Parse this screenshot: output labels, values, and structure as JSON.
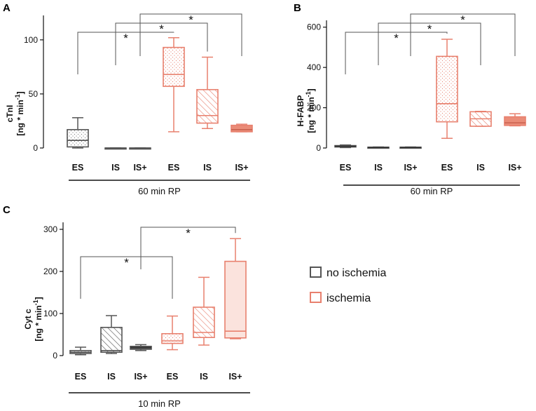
{
  "colors": {
    "no_ischemia": "#555555",
    "ischemia": "#e8806e",
    "ischemia_fill": "#fbe3dd",
    "ischemia_solid": "#ea8c78"
  },
  "legend": {
    "items": [
      {
        "label": "no ischemia",
        "color": "#555555"
      },
      {
        "label": "ischemia",
        "color": "#e8806e"
      }
    ]
  },
  "chart_data": [
    {
      "type": "box",
      "panel": "A",
      "ylabel_line1": "cTnI",
      "ylabel_line2": "[ng * min",
      "ylabel_sup": "-1",
      "ylabel_close": "]",
      "ylim": [
        0,
        120
      ],
      "yticks": [
        0,
        50,
        100
      ],
      "group_label": "60 min RP",
      "boxes": [
        {
          "category": "ES",
          "group": "no ischemia",
          "pattern": "dots",
          "min": 0,
          "q1": 1,
          "median": 7,
          "q3": 17,
          "max": 28
        },
        {
          "category": "IS",
          "group": "no ischemia",
          "pattern": "none",
          "min": 0,
          "q1": 0,
          "median": 0,
          "q3": 0,
          "max": 0
        },
        {
          "category": "IS+",
          "group": "no ischemia",
          "pattern": "none",
          "min": 0,
          "q1": 0,
          "median": 0,
          "q3": 0,
          "max": 0
        },
        {
          "category": "ES",
          "group": "ischemia",
          "pattern": "dots",
          "min": 15,
          "q1": 57,
          "median": 68,
          "q3": 93,
          "max": 102
        },
        {
          "category": "IS",
          "group": "ischemia",
          "pattern": "hatch",
          "min": 18,
          "q1": 23,
          "median": 30,
          "q3": 54,
          "max": 84
        },
        {
          "category": "IS+",
          "group": "ischemia",
          "pattern": "solid",
          "min": 15,
          "q1": 15,
          "median": 17,
          "q3": 21,
          "max": 22
        }
      ],
      "significance": [
        {
          "from": 0,
          "to": 3,
          "label": "*"
        },
        {
          "from": 1,
          "to": 4,
          "label": "*"
        },
        {
          "from": 2,
          "to": 5,
          "label": "*"
        }
      ]
    },
    {
      "type": "box",
      "panel": "B",
      "ylabel_line1": "H-FABP",
      "ylabel_line2": "[ng * min",
      "ylabel_sup": "-1",
      "ylabel_close": "]",
      "ylim": [
        0,
        620
      ],
      "yticks": [
        0,
        200,
        400,
        600
      ],
      "group_label": "60 min RP",
      "boxes": [
        {
          "category": "ES",
          "group": "no ischemia",
          "pattern": "solid",
          "min": 2,
          "q1": 5,
          "median": 8,
          "q3": 12,
          "max": 15
        },
        {
          "category": "IS",
          "group": "no ischemia",
          "pattern": "solid",
          "min": 1,
          "q1": 2,
          "median": 3,
          "q3": 4,
          "max": 5
        },
        {
          "category": "IS+",
          "group": "no ischemia",
          "pattern": "solid",
          "min": 1,
          "q1": 2,
          "median": 3,
          "q3": 4,
          "max": 5
        },
        {
          "category": "ES",
          "group": "ischemia",
          "pattern": "dots",
          "min": 48,
          "q1": 130,
          "median": 220,
          "q3": 455,
          "max": 540
        },
        {
          "category": "IS",
          "group": "ischemia",
          "pattern": "hatch",
          "min": 108,
          "q1": 108,
          "median": 145,
          "q3": 180,
          "max": 182
        },
        {
          "category": "IS+",
          "group": "ischemia",
          "pattern": "solid",
          "min": 110,
          "q1": 112,
          "median": 125,
          "q3": 155,
          "max": 170
        }
      ],
      "significance": [
        {
          "from": 0,
          "to": 3,
          "label": "*"
        },
        {
          "from": 1,
          "to": 4,
          "label": "*"
        },
        {
          "from": 2,
          "to": 5,
          "label": "*"
        }
      ]
    },
    {
      "type": "box",
      "panel": "C",
      "ylabel_line1": "Cyt c",
      "ylabel_line2": "[ng * min",
      "ylabel_sup": "-1",
      "ylabel_close": "]",
      "ylim": [
        0,
        310
      ],
      "yticks": [
        0,
        100,
        200,
        300
      ],
      "group_label": "10 min RP",
      "boxes": [
        {
          "category": "ES",
          "group": "no ischemia",
          "pattern": "dots",
          "min": 2,
          "q1": 5,
          "median": 8,
          "q3": 12,
          "max": 20
        },
        {
          "category": "IS",
          "group": "no ischemia",
          "pattern": "hatch",
          "min": 5,
          "q1": 8,
          "median": 12,
          "q3": 67,
          "max": 95
        },
        {
          "category": "IS+",
          "group": "no ischemia",
          "pattern": "solid",
          "min": 12,
          "q1": 15,
          "median": 19,
          "q3": 22,
          "max": 26
        },
        {
          "category": "ES",
          "group": "ischemia",
          "pattern": "dots",
          "min": 14,
          "q1": 29,
          "median": 35,
          "q3": 52,
          "max": 94
        },
        {
          "category": "IS",
          "group": "ischemia",
          "pattern": "hatch",
          "min": 25,
          "q1": 43,
          "median": 55,
          "q3": 115,
          "max": 186
        },
        {
          "category": "IS+",
          "group": "ischemia",
          "pattern": "fill",
          "min": 40,
          "q1": 42,
          "median": 58,
          "q3": 224,
          "max": 278
        }
      ],
      "significance": [
        {
          "from": 0,
          "to": 3,
          "label": "*"
        },
        {
          "from": 2,
          "to": 5,
          "label": "*"
        }
      ]
    }
  ]
}
